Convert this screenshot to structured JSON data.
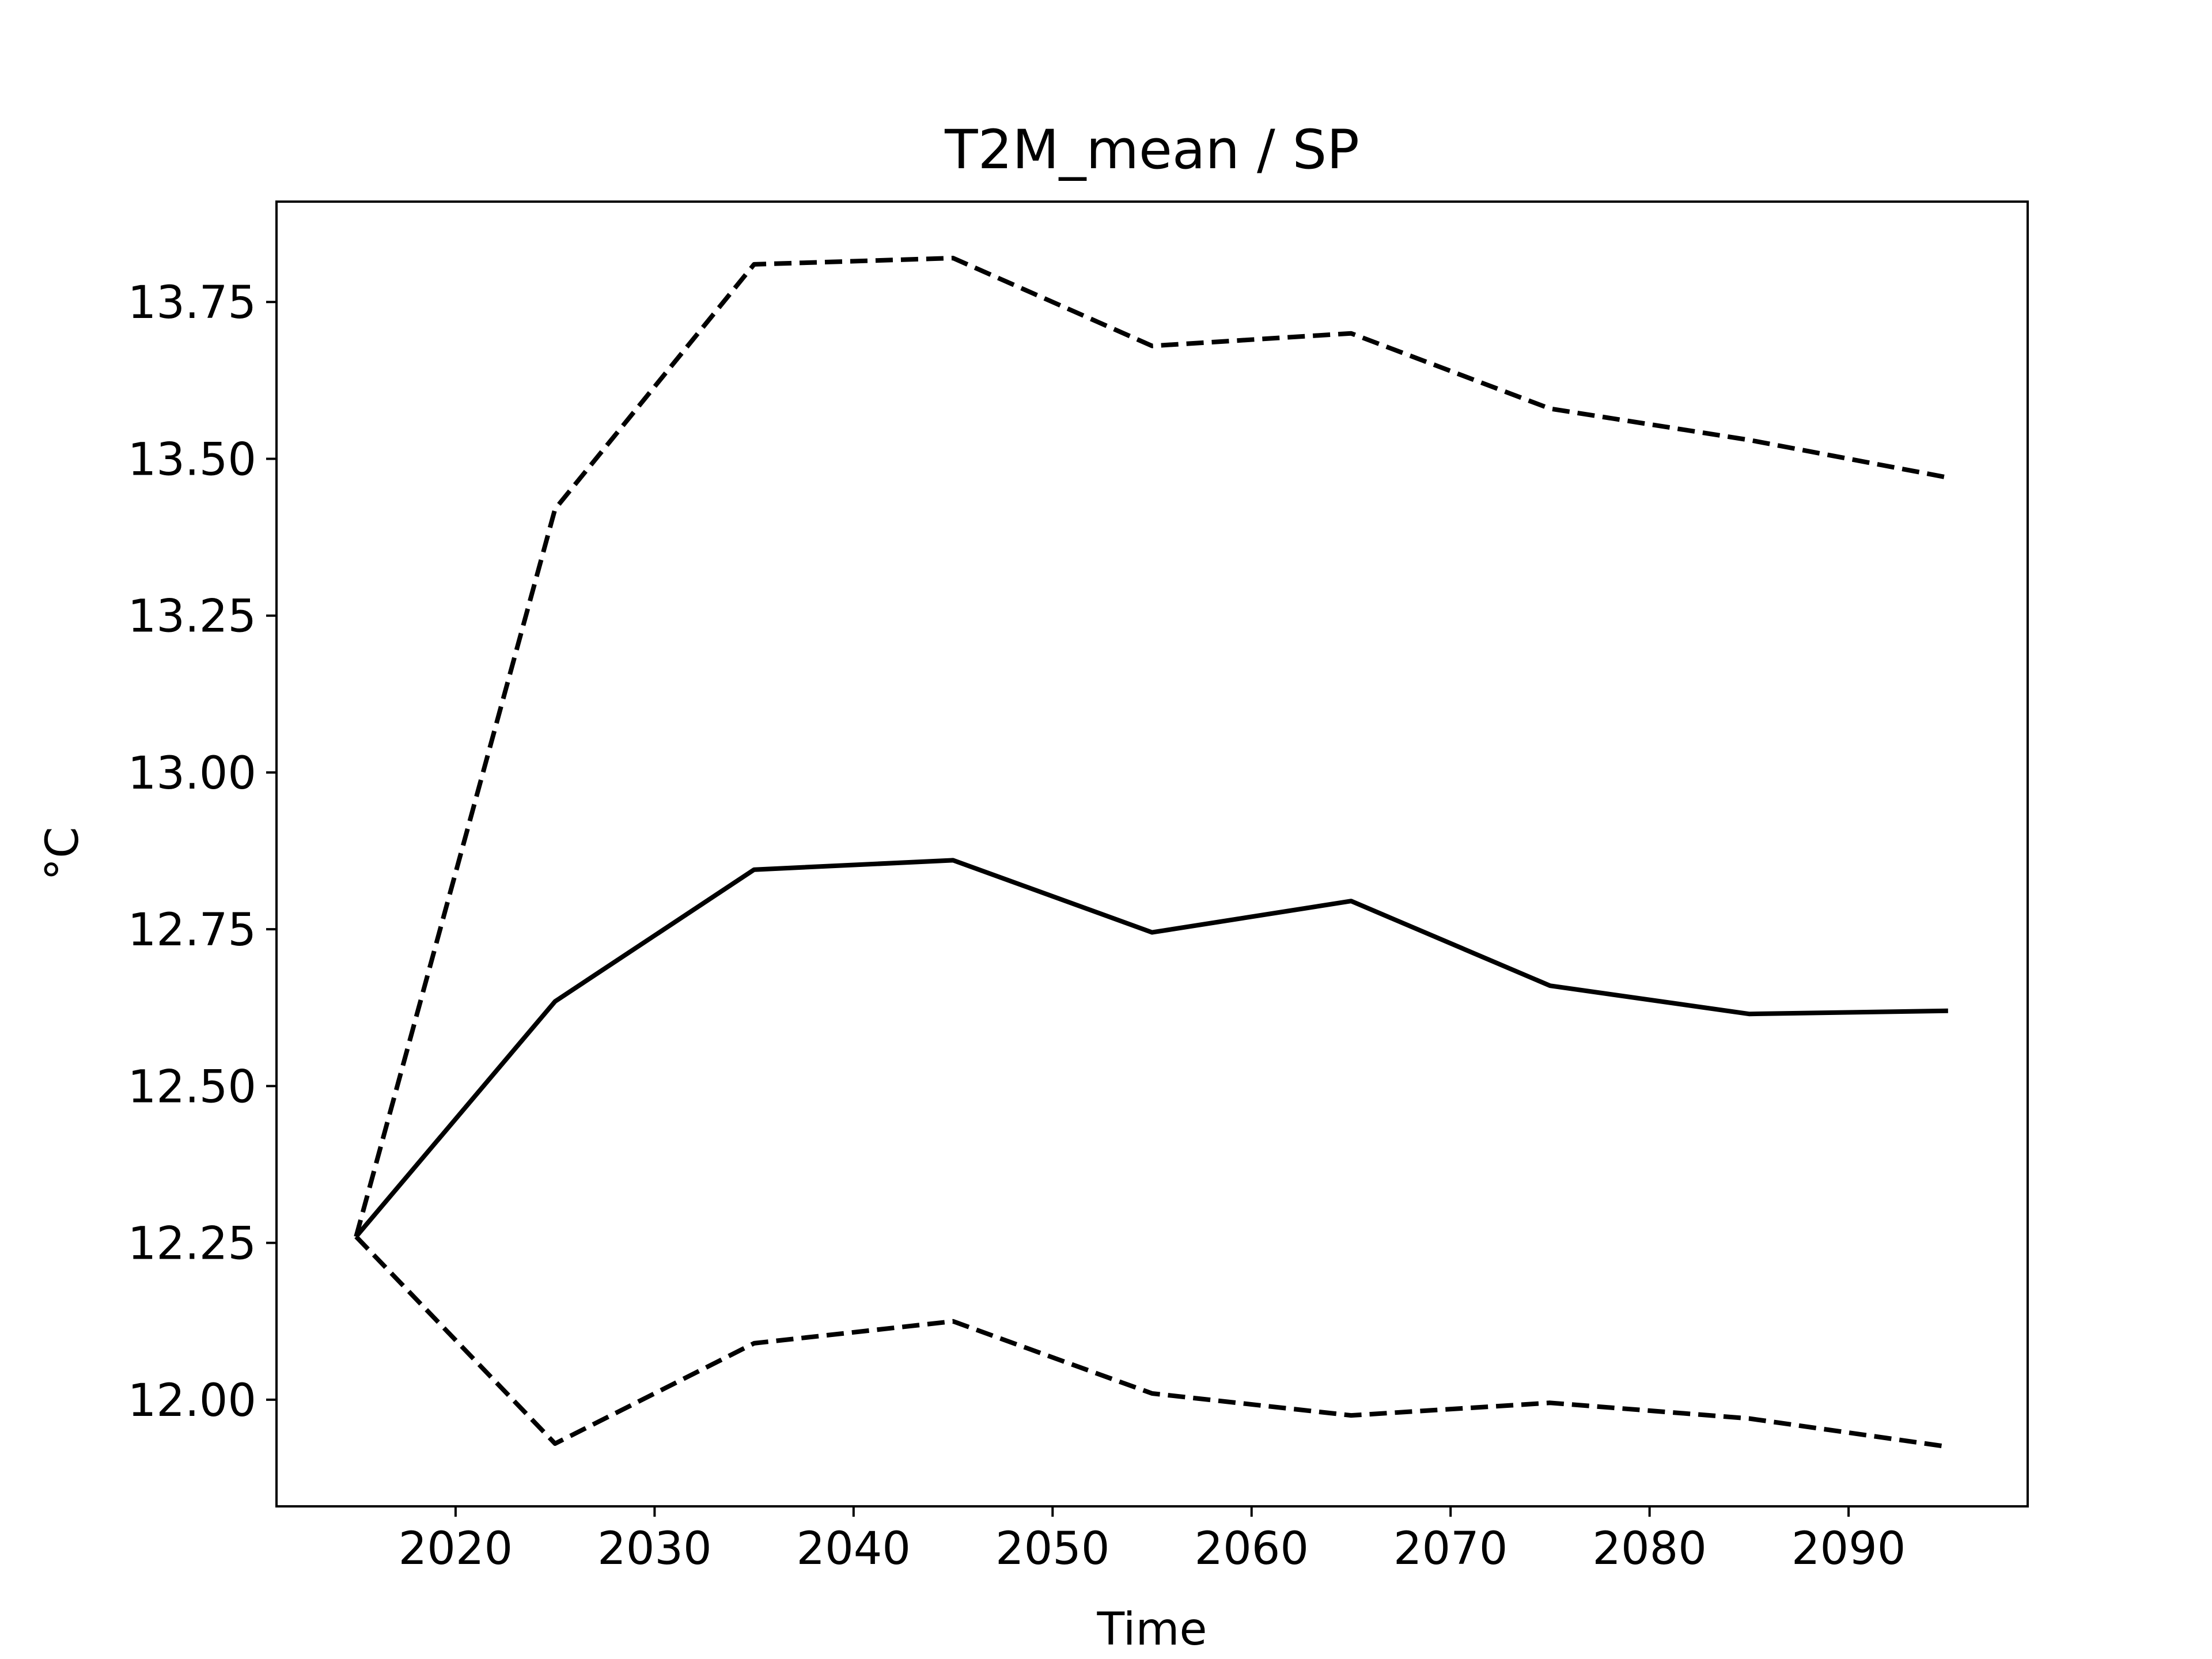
{
  "chart_data": {
    "type": "line",
    "title": "T2M_mean / SP",
    "xlabel": "Time",
    "ylabel": "°C",
    "xlim": [
      2011,
      2099
    ],
    "ylim": [
      11.83,
      13.91
    ],
    "x_ticks": [
      2020,
      2030,
      2040,
      2050,
      2060,
      2070,
      2080,
      2090
    ],
    "y_ticks": [
      12.0,
      12.25,
      12.5,
      12.75,
      13.0,
      13.25,
      13.5,
      13.75
    ],
    "grid": false,
    "legend": "none",
    "x": [
      2015,
      2025,
      2035,
      2045,
      2055,
      2065,
      2075,
      2085,
      2095
    ],
    "series": [
      {
        "style": "solid",
        "color": "#000000",
        "values": [
          12.26,
          12.635,
          12.845,
          12.86,
          12.745,
          12.795,
          12.66,
          12.615,
          12.62
        ]
      },
      {
        "style": "dashed",
        "color": "#000000",
        "values": [
          12.26,
          13.42,
          13.81,
          13.82,
          13.68,
          13.7,
          13.58,
          13.53,
          13.47
        ]
      },
      {
        "style": "dashed",
        "color": "#000000",
        "values": [
          12.26,
          11.93,
          12.09,
          12.125,
          12.01,
          11.975,
          11.995,
          11.97,
          11.925
        ]
      }
    ]
  }
}
